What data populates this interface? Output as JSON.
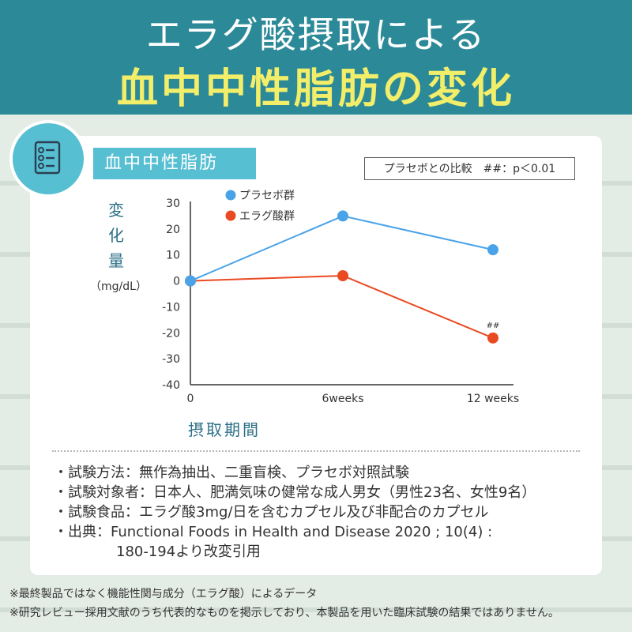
{
  "header": {
    "title_line1": "エラグ酸摂取による",
    "title_line2": "血中中性脂肪の変化"
  },
  "card": {
    "tag_label": "血中中性脂肪",
    "pvalue_note": "プラセボとの比較　##：p＜0.01",
    "y_axis_label": "変化量",
    "y_axis_unit": "（mg/dL）",
    "x_axis_label": "摂取期間"
  },
  "chart_data": {
    "type": "line",
    "title": "血中中性脂肪",
    "xlabel": "摂取期間",
    "ylabel": "変化量（mg/dL）",
    "categories": [
      "0",
      "6weeks",
      "12 weeks"
    ],
    "ylim": [
      -40,
      30
    ],
    "yticks": [
      30,
      20,
      10,
      0,
      -10,
      -20,
      -30,
      -40
    ],
    "series": [
      {
        "name": "プラセボ群",
        "color": "#4aa3e8",
        "values": [
          0,
          25,
          12
        ]
      },
      {
        "name": "エラグ酸群",
        "color": "#ea4a22",
        "values": [
          0,
          2,
          -22
        ]
      }
    ],
    "annotations": [
      {
        "series": "エラグ酸群",
        "category": "12 weeks",
        "text": "##"
      }
    ],
    "legend_position": "top-left",
    "grid": false
  },
  "notes": [
    "・試験方法：無作為抽出、二重盲検、プラセボ対照試験",
    "・試験対象者：日本人、肥満気味の健常な成人男女（男性23名、女性9名）",
    "・試験食品：エラグ酸3mg/日を含むカプセル及び非配合のカプセル",
    "・出典：Functional Foods in Health and Disease 2020 ; 10(4) :",
    "180-194より改変引用"
  ],
  "footnotes": [
    "※最終製品ではなく機能性関与成分（エラグ酸）によるデータ",
    "※研究レビュー採用文献のうち代表的なものを掲示しており、本製品を用いた臨床試験の結果ではありません。"
  ],
  "colors": {
    "header_bg": "#2c8a98",
    "title_accent": "#f2ee6a",
    "tag_bg": "#56bfd2",
    "label_blue": "#2b6f86"
  },
  "icons": {
    "document": "document-list-icon"
  }
}
